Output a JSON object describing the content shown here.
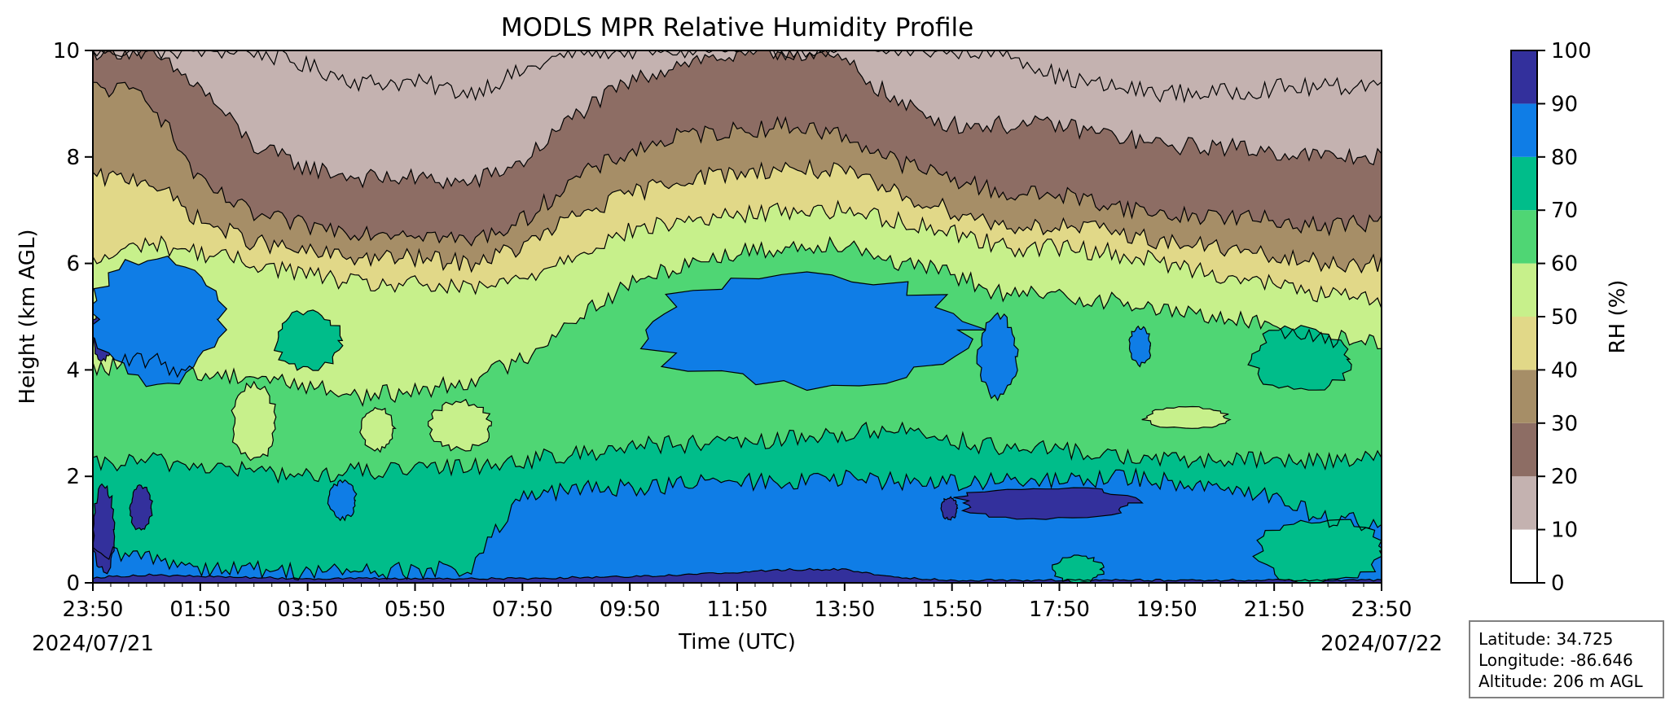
{
  "info_box": {
    "latitude": "Latitude: 34.725",
    "longitude": "Longitude: -86.646",
    "altitude": "Altitude: 206 m AGL"
  },
  "chart_data": {
    "type": "heatmap",
    "subtype": "filled-contour",
    "title": "MODLS MPR Relative Humidity Profile",
    "xlabel": "Time (UTC)",
    "ylabel": "Height (km AGL)",
    "x_range": [
      "2024-07-21 23:50",
      "2024-07-22 23:50"
    ],
    "x_ticks": [
      "23:50",
      "01:50",
      "03:50",
      "05:50",
      "07:50",
      "09:50",
      "11:50",
      "13:50",
      "15:50",
      "17:50",
      "19:50",
      "21:50",
      "23:50"
    ],
    "x_date_labels": {
      "start": "2024/07/21",
      "end": "2024/07/22"
    },
    "ylim": [
      0,
      10
    ],
    "y_ticks": [
      0,
      2,
      4,
      6,
      8,
      10
    ],
    "colorbar": {
      "label": "RH (%)",
      "range": [
        0,
        100
      ],
      "ticks": [
        0,
        10,
        20,
        30,
        40,
        50,
        60,
        70,
        80,
        90,
        100
      ],
      "levels": [
        {
          "min": 0,
          "max": 10,
          "color": "#ffffff"
        },
        {
          "min": 10,
          "max": 20,
          "color": "#c4b2b0"
        },
        {
          "min": 20,
          "max": 30,
          "color": "#8d6d64"
        },
        {
          "min": 30,
          "max": 40,
          "color": "#a68e67"
        },
        {
          "min": 40,
          "max": 50,
          "color": "#e1d888"
        },
        {
          "min": 50,
          "max": 60,
          "color": "#c7f08b"
        },
        {
          "min": 60,
          "max": 70,
          "color": "#4fd674"
        },
        {
          "min": 70,
          "max": 80,
          "color": "#00bd8a"
        },
        {
          "min": 80,
          "max": 90,
          "color": "#0f7de6"
        },
        {
          "min": 90,
          "max": 100,
          "color": "#33309c"
        }
      ]
    },
    "contour_boundaries_km": {
      "hours_since_start": [
        0,
        1,
        2,
        3,
        4,
        5,
        6,
        7,
        8,
        9,
        10,
        11,
        12,
        13,
        14,
        15,
        16,
        17,
        18,
        19,
        20,
        21,
        22,
        23,
        24
      ],
      "rh_90": [
        0.1,
        0.15,
        0.12,
        0.1,
        0.08,
        0.08,
        0.08,
        0.08,
        0.08,
        0.1,
        0.12,
        0.15,
        0.2,
        0.25,
        0.25,
        0.1,
        0.05,
        0.05,
        0.05,
        0.05,
        0.05,
        0.05,
        0.05,
        0.05,
        0.05
      ],
      "rh_80": [
        0.5,
        0.5,
        0.3,
        0.25,
        0.22,
        0.22,
        0.22,
        0.25,
        1.6,
        1.75,
        1.8,
        1.85,
        1.9,
        1.9,
        1.95,
        1.9,
        1.9,
        1.9,
        1.9,
        2.0,
        1.9,
        1.85,
        1.6,
        1.2,
        1.1
      ],
      "rh_70": [
        2.2,
        2.3,
        2.2,
        2.1,
        2.0,
        2.1,
        2.1,
        2.2,
        2.3,
        2.4,
        2.6,
        2.6,
        2.6,
        2.7,
        2.8,
        2.9,
        2.7,
        2.5,
        2.5,
        2.4,
        2.3,
        2.3,
        2.3,
        2.3,
        2.4
      ],
      "rh_60": [
        4.0,
        4.2,
        3.9,
        3.9,
        3.7,
        3.5,
        3.6,
        3.8,
        4.2,
        5.0,
        5.6,
        6.0,
        6.2,
        6.3,
        6.4,
        6.0,
        5.8,
        5.4,
        5.4,
        5.3,
        5.1,
        5.0,
        4.8,
        4.6,
        4.5
      ],
      "rh_50": [
        6.0,
        6.4,
        6.2,
        6.0,
        5.8,
        5.6,
        5.6,
        5.5,
        5.7,
        6.2,
        6.6,
        6.8,
        6.9,
        7.0,
        7.0,
        6.8,
        6.6,
        6.3,
        6.3,
        6.2,
        6.0,
        5.8,
        5.6,
        5.4,
        5.3
      ],
      "rh_40": [
        7.6,
        7.6,
        6.8,
        6.4,
        6.2,
        6.1,
        6.1,
        6.0,
        6.3,
        6.9,
        7.3,
        7.6,
        7.7,
        7.8,
        7.7,
        7.3,
        7.0,
        6.7,
        6.7,
        6.6,
        6.4,
        6.3,
        6.1,
        6.0,
        6.0
      ],
      "rh_30": [
        9.3,
        9.2,
        7.5,
        6.9,
        6.7,
        6.6,
        6.6,
        6.4,
        6.8,
        7.6,
        8.1,
        8.4,
        8.5,
        8.6,
        8.4,
        7.9,
        7.6,
        7.3,
        7.3,
        7.1,
        6.9,
        6.9,
        6.8,
        6.7,
        6.8
      ],
      "rh_20": [
        10.0,
        10.0,
        9.3,
        8.2,
        7.8,
        7.6,
        7.6,
        7.5,
        7.9,
        8.8,
        9.4,
        9.8,
        9.9,
        10.0,
        9.8,
        9.0,
        8.6,
        8.6,
        8.6,
        8.4,
        8.2,
        8.2,
        8.1,
        8.0,
        8.0
      ],
      "rh_10": [
        10.0,
        10.0,
        10.0,
        10.0,
        9.7,
        9.4,
        9.4,
        9.2,
        9.6,
        10.0,
        10.0,
        10.0,
        10.0,
        10.0,
        10.0,
        10.0,
        10.0,
        10.0,
        9.5,
        9.3,
        9.2,
        9.2,
        9.3,
        9.3,
        9.4
      ]
    },
    "patches": [
      {
        "rh_band": 90,
        "t_start": 0.0,
        "t_end": 0.4,
        "h_low": 4.2,
        "h_high": 5.2
      },
      {
        "rh_band": 90,
        "t_start": 0.0,
        "t_end": 0.4,
        "h_low": 0.2,
        "h_high": 1.8
      },
      {
        "rh_band": 90,
        "t_start": 0.7,
        "t_end": 1.1,
        "h_low": 1.0,
        "h_high": 1.8
      },
      {
        "rh_band": 90,
        "t_start": 16.1,
        "t_end": 19.4,
        "h_low": 1.2,
        "h_high": 1.8
      },
      {
        "rh_band": 90,
        "t_start": 15.8,
        "t_end": 16.1,
        "h_low": 1.2,
        "h_high": 1.6
      },
      {
        "rh_band": 80,
        "t_start": 0.0,
        "t_end": 2.4,
        "h_low": 3.8,
        "h_high": 6.1
      },
      {
        "rh_band": 80,
        "t_start": 10.3,
        "t_end": 16.3,
        "h_low": 3.7,
        "h_high": 5.8
      },
      {
        "rh_band": 80,
        "t_start": 16.5,
        "t_end": 17.2,
        "h_low": 3.5,
        "h_high": 5.0
      },
      {
        "rh_band": 80,
        "t_start": 19.3,
        "t_end": 19.7,
        "h_low": 4.1,
        "h_high": 4.8
      },
      {
        "rh_band": 80,
        "t_start": 4.4,
        "t_end": 4.9,
        "h_low": 1.2,
        "h_high": 1.9
      },
      {
        "rh_band": 70,
        "t_start": 3.4,
        "t_end": 4.6,
        "h_low": 4.0,
        "h_high": 5.1
      },
      {
        "rh_band": 70,
        "t_start": 21.6,
        "t_end": 23.4,
        "h_low": 3.6,
        "h_high": 4.8
      },
      {
        "rh_band": 50,
        "t_start": 2.6,
        "t_end": 3.4,
        "h_low": 2.3,
        "h_high": 3.7
      },
      {
        "rh_band": 50,
        "t_start": 5.0,
        "t_end": 5.6,
        "h_low": 2.5,
        "h_high": 3.3
      },
      {
        "rh_band": 50,
        "t_start": 6.3,
        "t_end": 7.4,
        "h_low": 2.5,
        "h_high": 3.4
      },
      {
        "rh_band": 50,
        "t_start": 19.6,
        "t_end": 21.1,
        "h_low": 2.9,
        "h_high": 3.3
      },
      {
        "rh_band": 70,
        "t_start": 17.9,
        "t_end": 18.8,
        "h_low": 0.0,
        "h_high": 0.5
      },
      {
        "rh_band": 70,
        "t_start": 21.7,
        "t_end": 24.0,
        "h_low": 0.0,
        "h_high": 1.2
      }
    ]
  }
}
